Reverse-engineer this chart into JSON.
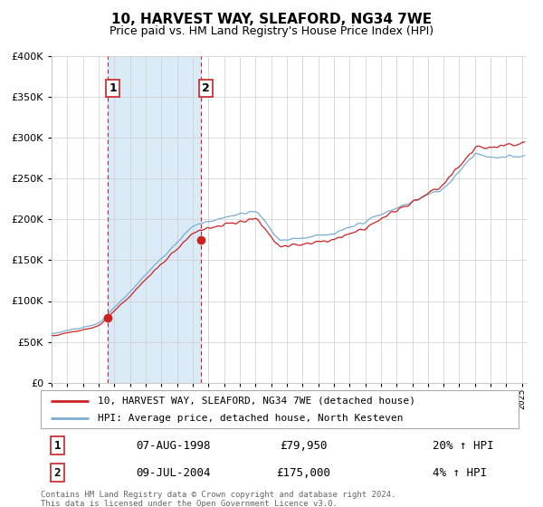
{
  "title": "10, HARVEST WAY, SLEAFORD, NG34 7WE",
  "subtitle": "Price paid vs. HM Land Registry's House Price Index (HPI)",
  "legend_line1": "10, HARVEST WAY, SLEAFORD, NG34 7WE (detached house)",
  "legend_line2": "HPI: Average price, detached house, North Kesteven",
  "sale1_label": "1",
  "sale1_date": "07-AUG-1998",
  "sale1_price": "£79,950",
  "sale1_hpi": "20% ↑ HPI",
  "sale2_label": "2",
  "sale2_date": "09-JUL-2004",
  "sale2_price": "£175,000",
  "sale2_hpi": "4% ↑ HPI",
  "copyright_text": "Contains HM Land Registry data © Crown copyright and database right 2024.\nThis data is licensed under the Open Government Licence v3.0.",
  "red_line_color": "#cc2222",
  "blue_line_color": "#7aadd4",
  "shade_color": "#daeaf6",
  "grid_color": "#cccccc",
  "background_color": "#ffffff",
  "sale1_x": 1998.6,
  "sale1_y": 79950,
  "sale2_x": 2004.52,
  "sale2_y": 175000,
  "vline1_x": 1998.6,
  "vline2_x": 2004.52,
  "ylim": [
    0,
    400000
  ],
  "xlim": [
    1995.0,
    2025.3
  ]
}
